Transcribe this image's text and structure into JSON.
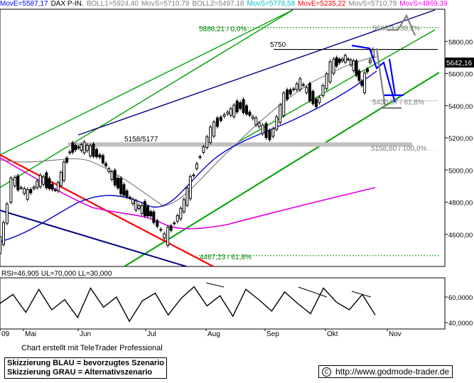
{
  "legend": [
    {
      "text": "MovE=5587,17",
      "color": "#0000ff"
    },
    {
      "text": "DAX P-IN.",
      "color": "#000000"
    },
    {
      "text": "BOLL1=5924,40",
      "color": "#808080"
    },
    {
      "text": "MovS=5710,79",
      "color": "#808080"
    },
    {
      "text": "BOLL2=5497,18",
      "color": "#808080"
    },
    {
      "text": "MovS=5778,58",
      "color": "#00c0c0"
    },
    {
      "text": "MovE=5235,22",
      "color": "#ff0000"
    },
    {
      "text": "MovS=5710,79",
      "color": "#808080"
    },
    {
      "text": "MovS=4869,39",
      "color": "#ff00ff"
    }
  ],
  "colors": {
    "candle": "#000000",
    "upper_boll": "#808080",
    "mov_blue": "#0000cc",
    "mov_magenta": "#e000e0",
    "trend_green": "#00a000",
    "trend_navy": "#000080",
    "trend_red": "#ff0000",
    "level_gray": "#c0c0c0",
    "scenario_blue": "#0000ff",
    "scenario_gray": "#808080",
    "price_tag_bg": "#000000"
  },
  "annotations": {
    "fib_top": "5886,21 / 0,0%",
    "fib_382": "5688,3 / 38,2%",
    "fib_618": "5430,97 / 61,8%",
    "fib_100": "5158,60 / 100,0%",
    "level_5750": "5750",
    "level_5158": "5158/5177",
    "fib_low": "4467,23 / 61,8%"
  },
  "price_tag": "5642,16",
  "rsi_label": "RSI=46,905 UL=70,000 LL=30,000",
  "footer": {
    "credit": "Chart erstellt mit TeleTrader Professional",
    "scenario_blue": "Skizzierung BLAU = bevorzugtes Szenario",
    "scenario_gray": "Skizzierung GRAU = Alternativszenario",
    "url": "http://www.godmode-trader.de"
  },
  "chart_data": [
    {
      "type": "candlestick",
      "title": "DAX P-IN.",
      "x_ticks": [
        "09",
        "Mai",
        "Jun",
        "Jul",
        "Aug",
        "Sep",
        "Okt",
        "Nov"
      ],
      "ylim": [
        4400,
        6000
      ],
      "y_ticks": [
        "4600,00",
        "4800,00",
        "5000,00",
        "5200,00",
        "5400,00",
        "5600,00",
        "5800,00"
      ],
      "y_tick_values": [
        4600,
        4800,
        5000,
        5200,
        5400,
        5600,
        5800
      ],
      "close_path": [
        [
          "Apr 01",
          4500
        ],
        [
          "Apr 10",
          4650
        ],
        [
          "Apr 20",
          4950
        ],
        [
          "Apr 28",
          4900
        ],
        [
          "Mai 05",
          4850
        ],
        [
          "Mai 12",
          4950
        ],
        [
          "Mai 20",
          4870
        ],
        [
          "Mai 28",
          5130
        ],
        [
          "Jun 05",
          5150
        ],
        [
          "Jun 12",
          5080
        ],
        [
          "Jun 20",
          4900
        ],
        [
          "Jun 28",
          4780
        ],
        [
          "Jul 05",
          4720
        ],
        [
          "Jul 12",
          4580
        ],
        [
          "Jul 20",
          4750
        ],
        [
          "Jul 28",
          5050
        ],
        [
          "Aug 05",
          5250
        ],
        [
          "Aug 12",
          5350
        ],
        [
          "Aug 20",
          5400
        ],
        [
          "Aug 28",
          5300
        ],
        [
          "Sep 05",
          5200
        ],
        [
          "Sep 12",
          5450
        ],
        [
          "Sep 20",
          5550
        ],
        [
          "Sep 28",
          5400
        ],
        [
          "Okt 05",
          5650
        ],
        [
          "Okt 12",
          5700
        ],
        [
          "Okt 16",
          5650
        ],
        [
          "Okt 20",
          5520
        ],
        [
          "Okt 24",
          5700
        ],
        [
          "Okt 28",
          5850
        ],
        [
          "Nov 02",
          5800
        ],
        [
          "Nov 05",
          5650
        ]
      ],
      "levels": [
        5886.21,
        5750,
        5688.3,
        5430.97,
        5177,
        5158.6,
        4467.23
      ]
    },
    {
      "type": "line",
      "title": "RSI=46,905 UL=70,000 LL=30,000",
      "ylim": [
        35,
        75
      ],
      "y_ticks": [
        "40,0000",
        "60,0000"
      ],
      "y_tick_values": [
        40,
        60
      ],
      "series": [
        {
          "name": "RSI",
          "values": [
            55,
            62,
            48,
            66,
            50,
            58,
            44,
            67,
            52,
            60,
            41,
            57,
            63,
            46,
            59,
            68,
            53,
            61,
            45,
            66,
            58,
            49,
            64,
            55,
            47,
            67,
            56,
            50,
            62,
            46
          ]
        }
      ]
    }
  ]
}
